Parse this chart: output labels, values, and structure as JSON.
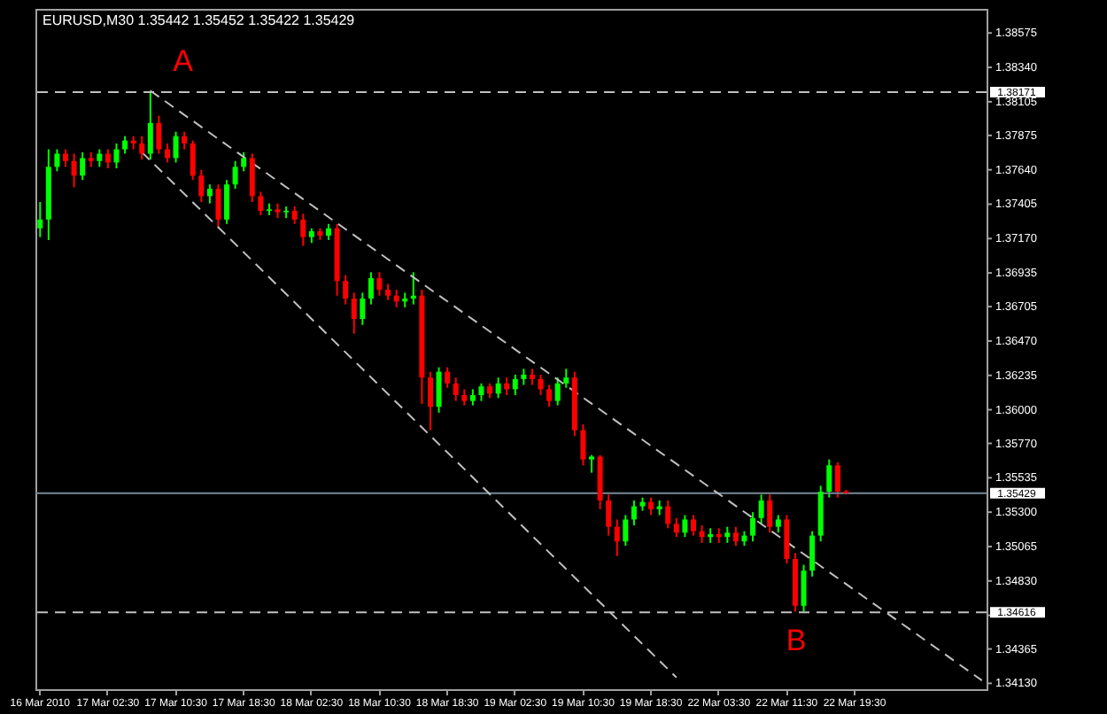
{
  "chart_data": {
    "type": "candlestick",
    "title": "EURUSD,M30 1.35442 1.35452 1.35422 1.35429",
    "categories": [
      "16 Mar 2010",
      null,
      null,
      null,
      null,
      null,
      null,
      null,
      "17 Mar 02:30",
      null,
      null,
      null,
      null,
      null,
      null,
      null,
      "17 Mar 10:30",
      null,
      null,
      null,
      null,
      null,
      null,
      null,
      "17 Mar 18:30",
      null,
      null,
      null,
      null,
      null,
      null,
      null,
      "18 Mar 02:30",
      null,
      null,
      null,
      null,
      null,
      null,
      null,
      "18 Mar 10:30",
      null,
      null,
      null,
      null,
      null,
      null,
      null,
      "18 Mar 18:30",
      null,
      null,
      null,
      null,
      null,
      null,
      null,
      "19 Mar 02:30",
      null,
      null,
      null,
      null,
      null,
      null,
      null,
      "19 Mar 10:30",
      null,
      null,
      null,
      null,
      null,
      null,
      null,
      "19 Mar 18:30",
      null,
      null,
      null,
      null,
      null,
      null,
      null,
      "22 Mar 03:30",
      null,
      null,
      null,
      null,
      null,
      null,
      null,
      "22 Mar 11:30",
      null,
      null,
      null,
      null,
      null,
      null,
      null,
      "22 Mar 19:30",
      null,
      null,
      null,
      null,
      null,
      null,
      null,
      null,
      null,
      null,
      null,
      null,
      null,
      null,
      null
    ],
    "ohlc": [
      [
        1.3724,
        1.3742,
        1.3718,
        1.373
      ],
      [
        1.373,
        1.3778,
        1.3716,
        1.3766
      ],
      [
        1.3766,
        1.3778,
        1.3763,
        1.3775
      ],
      [
        1.3775,
        1.3778,
        1.3766,
        1.377
      ],
      [
        1.377,
        1.3775,
        1.3752,
        1.376
      ],
      [
        1.376,
        1.3776,
        1.3757,
        1.3772
      ],
      [
        1.3772,
        1.3776,
        1.3766,
        1.377
      ],
      [
        1.377,
        1.3778,
        1.3766,
        1.3775
      ],
      [
        1.3775,
        1.3778,
        1.3765,
        1.3769
      ],
      [
        1.3769,
        1.3782,
        1.3765,
        1.3778
      ],
      [
        1.3778,
        1.3787,
        1.3775,
        1.3784
      ],
      [
        1.3784,
        1.3787,
        1.3778,
        1.3782
      ],
      [
        1.3782,
        1.3787,
        1.3771,
        1.3775
      ],
      [
        1.3775,
        1.3818,
        1.3771,
        1.3796
      ],
      [
        1.3796,
        1.3801,
        1.3775,
        1.3778
      ],
      [
        1.3778,
        1.3782,
        1.3769,
        1.3772
      ],
      [
        1.3772,
        1.379,
        1.3769,
        1.3787
      ],
      [
        1.3787,
        1.379,
        1.3778,
        1.3782
      ],
      [
        1.3782,
        1.3784,
        1.3757,
        1.376
      ],
      [
        1.376,
        1.3764,
        1.3742,
        1.3746
      ],
      [
        1.3746,
        1.3754,
        1.3741,
        1.3751
      ],
      [
        1.3751,
        1.3754,
        1.3724,
        1.373
      ],
      [
        1.373,
        1.3757,
        1.3727,
        1.3754
      ],
      [
        1.3754,
        1.377,
        1.3751,
        1.3766
      ],
      [
        1.3766,
        1.3776,
        1.3763,
        1.3772
      ],
      [
        1.3772,
        1.3775,
        1.3742,
        1.3746
      ],
      [
        1.3746,
        1.3749,
        1.3733,
        1.3736
      ],
      [
        1.3736,
        1.3741,
        1.3733,
        1.3737
      ],
      [
        1.3737,
        1.3741,
        1.3731,
        1.3735
      ],
      [
        1.3735,
        1.3739,
        1.3731,
        1.3736
      ],
      [
        1.3736,
        1.3739,
        1.3727,
        1.373
      ],
      [
        1.373,
        1.3734,
        1.3712,
        1.3718
      ],
      [
        1.3718,
        1.3724,
        1.3714,
        1.3722
      ],
      [
        1.3722,
        1.3724,
        1.3716,
        1.3719
      ],
      [
        1.3719,
        1.3727,
        1.3716,
        1.3724
      ],
      [
        1.3724,
        1.3727,
        1.3678,
        1.3688
      ],
      [
        1.3688,
        1.3692,
        1.3672,
        1.3676
      ],
      [
        1.3676,
        1.368,
        1.3652,
        1.3662
      ],
      [
        1.3662,
        1.368,
        1.3658,
        1.3676
      ],
      [
        1.3676,
        1.3694,
        1.3672,
        1.369
      ],
      [
        1.369,
        1.3694,
        1.3678,
        1.3682
      ],
      [
        1.3682,
        1.3686,
        1.3675,
        1.3678
      ],
      [
        1.3678,
        1.3682,
        1.367,
        1.3674
      ],
      [
        1.3674,
        1.368,
        1.367,
        1.3676
      ],
      [
        1.3676,
        1.3694,
        1.3672,
        1.3678
      ],
      [
        1.3678,
        1.3682,
        1.3604,
        1.3622
      ],
      [
        1.3622,
        1.3626,
        1.3586,
        1.3602
      ],
      [
        1.3602,
        1.3629,
        1.3598,
        1.3626
      ],
      [
        1.3626,
        1.3629,
        1.3615,
        1.3618
      ],
      [
        1.3618,
        1.3622,
        1.3606,
        1.361
      ],
      [
        1.361,
        1.3614,
        1.3603,
        1.3606
      ],
      [
        1.3606,
        1.3614,
        1.3603,
        1.361
      ],
      [
        1.361,
        1.3618,
        1.3606,
        1.3616
      ],
      [
        1.3616,
        1.3618,
        1.3608,
        1.3611
      ],
      [
        1.3611,
        1.3622,
        1.3608,
        1.3618
      ],
      [
        1.3618,
        1.3622,
        1.361,
        1.3614
      ],
      [
        1.3614,
        1.3624,
        1.361,
        1.3621
      ],
      [
        1.3621,
        1.3628,
        1.3617,
        1.3624
      ],
      [
        1.3624,
        1.3628,
        1.3617,
        1.3621
      ],
      [
        1.3621,
        1.3624,
        1.361,
        1.3614
      ],
      [
        1.3614,
        1.3617,
        1.3602,
        1.3606
      ],
      [
        1.3606,
        1.3622,
        1.3603,
        1.3618
      ],
      [
        1.3618,
        1.3628,
        1.3615,
        1.3622
      ],
      [
        1.3622,
        1.3626,
        1.3582,
        1.3586
      ],
      [
        1.3586,
        1.359,
        1.3562,
        1.3566
      ],
      [
        1.3566,
        1.3569,
        1.3557,
        1.3568
      ],
      [
        1.3568,
        1.3569,
        1.3532,
        1.3538
      ],
      [
        1.3538,
        1.3542,
        1.3514,
        1.352
      ],
      [
        1.352,
        1.3525,
        1.35,
        1.351
      ],
      [
        1.351,
        1.3528,
        1.3507,
        1.3525
      ],
      [
        1.3525,
        1.3538,
        1.3521,
        1.3534
      ],
      [
        1.3534,
        1.354,
        1.3531,
        1.3537
      ],
      [
        1.3537,
        1.354,
        1.3528,
        1.3532
      ],
      [
        1.3532,
        1.3538,
        1.3528,
        1.3534
      ],
      [
        1.3534,
        1.3538,
        1.3519,
        1.3522
      ],
      [
        1.3522,
        1.3526,
        1.3513,
        1.3516
      ],
      [
        1.3516,
        1.3528,
        1.3513,
        1.3525
      ],
      [
        1.3525,
        1.3528,
        1.3514,
        1.3517
      ],
      [
        1.3517,
        1.3521,
        1.3509,
        1.3513
      ],
      [
        1.3513,
        1.3519,
        1.3509,
        1.3515
      ],
      [
        1.3515,
        1.3519,
        1.3509,
        1.3513
      ],
      [
        1.3513,
        1.352,
        1.3509,
        1.3516
      ],
      [
        1.3516,
        1.352,
        1.3507,
        1.351
      ],
      [
        1.351,
        1.3517,
        1.3507,
        1.3514
      ],
      [
        1.3514,
        1.353,
        1.351,
        1.3526
      ],
      [
        1.3526,
        1.3542,
        1.3522,
        1.3538
      ],
      [
        1.3538,
        1.3542,
        1.3516,
        1.352
      ],
      [
        1.352,
        1.3528,
        1.3516,
        1.3525
      ],
      [
        1.3525,
        1.3528,
        1.3495,
        1.3498
      ],
      [
        1.3498,
        1.3502,
        1.3462,
        1.3466
      ],
      [
        1.3466,
        1.3494,
        1.3462,
        1.349
      ],
      [
        1.349,
        1.3517,
        1.3486,
        1.3514
      ],
      [
        1.3514,
        1.3548,
        1.351,
        1.3544
      ],
      [
        1.3544,
        1.3566,
        1.354,
        1.3562
      ],
      [
        1.3562,
        1.3564,
        1.354,
        1.3544
      ],
      [
        1.35442,
        1.35452,
        1.35422,
        1.35429
      ],
      null,
      null,
      null,
      null,
      null,
      null,
      null,
      null,
      null,
      null,
      null,
      null,
      null,
      null,
      null,
      null
    ],
    "colors": [
      "#00ff00",
      "#00ff00",
      "#00ff00",
      "#ff0000",
      "#ff0000",
      "#00ff00",
      "#ff0000",
      "#00ff00",
      "#ff0000",
      "#00ff00",
      "#00ff00",
      "#ff0000",
      "#ff0000",
      "#00ff00",
      "#ff0000",
      "#ff0000",
      "#00ff00",
      "#ff0000",
      "#ff0000",
      "#ff0000",
      "#00ff00",
      "#ff0000",
      "#00ff00",
      "#00ff00",
      "#00ff00",
      "#ff0000",
      "#ff0000",
      "#00ff00",
      "#ff0000",
      "#00ff00",
      "#ff0000",
      "#ff0000",
      "#00ff00",
      "#ff0000",
      "#00ff00",
      "#ff0000",
      "#ff0000",
      "#ff0000",
      "#00ff00",
      "#00ff00",
      "#ff0000",
      "#ff0000",
      "#ff0000",
      "#00ff00",
      "#00ff00",
      "#ff0000",
      "#ff0000",
      "#00ff00",
      "#ff0000",
      "#ff0000",
      "#ff0000",
      "#00ff00",
      "#00ff00",
      "#ff0000",
      "#00ff00",
      "#ff0000",
      "#00ff00",
      "#00ff00",
      "#ff0000",
      "#ff0000",
      "#ff0000",
      "#00ff00",
      "#00ff00",
      "#ff0000",
      "#ff0000",
      "#00ff00",
      "#ff0000",
      "#ff0000",
      "#ff0000",
      "#00ff00",
      "#00ff00",
      "#00ff00",
      "#ff0000",
      "#00ff00",
      "#ff0000",
      "#ff0000",
      "#00ff00",
      "#ff0000",
      "#ff0000",
      "#00ff00",
      "#ff0000",
      "#00ff00",
      "#ff0000",
      "#00ff00",
      "#00ff00",
      "#00ff00",
      "#ff0000",
      "#00ff00",
      "#ff0000",
      "#ff0000",
      "#00ff00",
      "#00ff00",
      "#00ff00",
      "#00ff00",
      "#ff0000",
      "#ff0000",
      null,
      null,
      null,
      null,
      null,
      null,
      null,
      null,
      null,
      null,
      null,
      null,
      null,
      null,
      null,
      null
    ],
    "series": [
      {
        "type": "line",
        "color": "#c0c0c0",
        "line_style": "dashed",
        "values": [
          null,
          null,
          null,
          null,
          null,
          null,
          null,
          null,
          null,
          null,
          null,
          null,
          null,
          1.3818,
          null,
          null,
          null,
          null,
          null,
          null,
          null,
          null,
          null,
          null,
          null,
          null,
          null,
          null,
          null,
          null,
          null,
          null,
          null,
          null,
          null,
          null,
          null,
          null,
          null,
          null,
          null,
          null,
          null,
          null,
          null,
          null,
          null,
          null,
          null,
          null,
          null,
          null,
          null,
          null,
          null,
          null,
          null,
          null,
          null,
          null,
          null,
          null,
          null,
          null,
          null,
          null,
          null,
          null,
          null,
          null,
          null,
          null,
          null,
          null,
          null,
          null,
          null,
          null,
          null,
          null,
          null,
          null,
          null,
          null,
          null,
          null,
          null,
          null,
          null,
          null,
          null,
          null,
          null,
          null,
          null,
          null,
          null,
          null,
          null,
          null,
          null,
          null,
          null,
          null,
          null,
          null,
          null,
          null,
          null,
          null,
          null,
          1.3415
        ]
      },
      {
        "type": "line",
        "color": "#c0c0c0",
        "line_style": "dashed",
        "values": [
          null,
          null,
          null,
          null,
          null,
          null,
          null,
          null,
          null,
          null,
          null,
          null,
          1.3776,
          null,
          null,
          null,
          null,
          null,
          null,
          null,
          null,
          null,
          null,
          null,
          null,
          null,
          null,
          null,
          null,
          null,
          null,
          null,
          null,
          null,
          null,
          null,
          null,
          null,
          null,
          null,
          null,
          null,
          null,
          null,
          null,
          null,
          null,
          null,
          null,
          null,
          null,
          null,
          null,
          null,
          null,
          null,
          null,
          null,
          null,
          null,
          null,
          null,
          null,
          null,
          null,
          null,
          null,
          null,
          null,
          null,
          null,
          null,
          null,
          null,
          null,
          1.3417,
          null,
          null,
          null,
          null,
          null,
          null,
          null,
          null,
          null,
          null,
          null,
          null,
          null,
          null,
          null,
          null,
          null,
          null,
          null,
          null,
          null,
          null,
          null,
          null,
          null,
          null,
          null,
          null,
          null,
          null,
          null,
          null,
          null,
          null,
          null,
          null
        ]
      }
    ],
    "ylim": [
      1.3409,
      1.3874
    ],
    "yticks": [
      1.38575,
      {
        "value": 1.3834,
        "label": "1.38340"
      },
      1.38105,
      1.37875,
      {
        "value": 1.3764,
        "label": "1.37640"
      },
      1.37405,
      {
        "value": 1.3717,
        "label": "1.37170"
      },
      1.36935,
      1.36705,
      {
        "value": 1.3647,
        "label": "1.36470"
      },
      1.36235,
      {
        "value": 1.36,
        "label": "1.36000"
      },
      {
        "value": 1.3577,
        "label": "1.35770"
      },
      1.35535,
      {
        "value": 1.353,
        "label": "1.35300"
      },
      1.35065,
      {
        "value": 1.3483,
        "label": "1.34830"
      },
      {
        "value": 1.34595,
        "label": null
      },
      1.34365,
      {
        "value": 1.3413,
        "label": "1.34130"
      }
    ],
    "ref_lines": [
      {
        "axis": "y",
        "value": 1.38171,
        "label": "1.38171",
        "color": "#c0c0c0",
        "line_style": "dashed"
      },
      {
        "axis": "y",
        "value": 1.35429,
        "label": "1.35429",
        "color": "#778899",
        "line_style": "solid"
      },
      {
        "axis": "y",
        "value": 1.34616,
        "label": "1.34616",
        "color": "#c0c0c0",
        "line_style": "dashed"
      }
    ],
    "annotations": [
      "A",
      "B"
    ],
    "grid": false
  }
}
